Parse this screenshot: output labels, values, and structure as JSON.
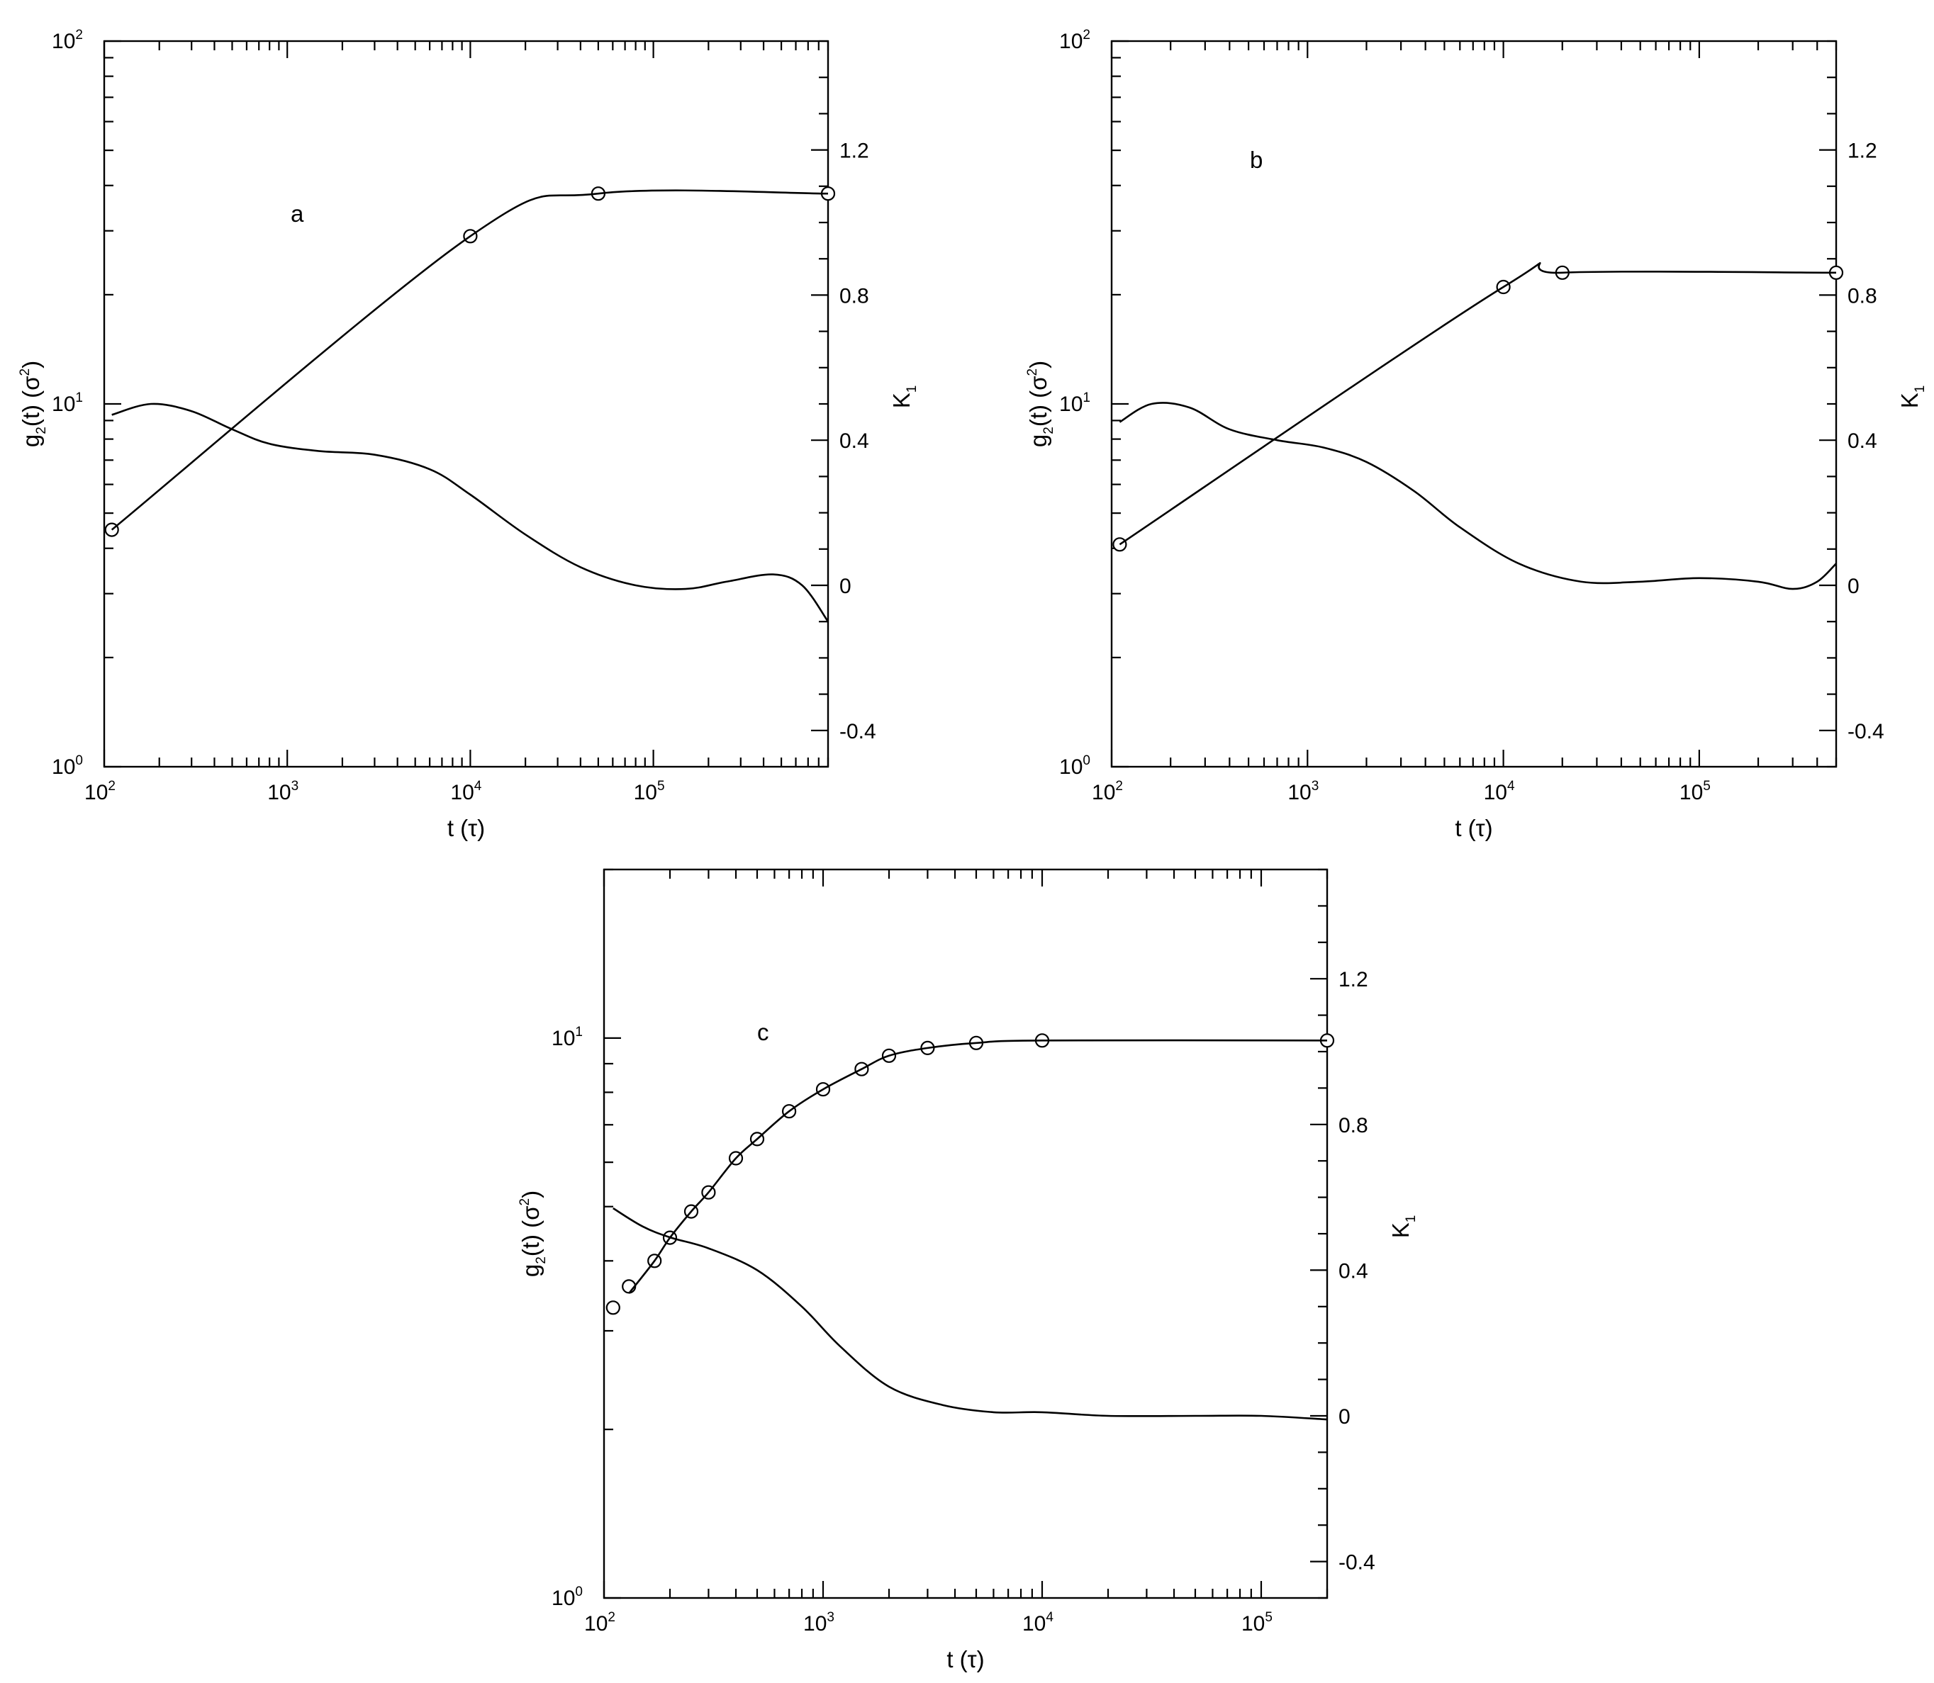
{
  "chart_data": [
    {
      "type": "line",
      "panel_label": "a",
      "xlabel": "t (τ)",
      "ylabel": "g2(t) (σ²)",
      "y2label": "K1",
      "xscale": "log",
      "yscale": "log",
      "xlim": [
        100,
        900000
      ],
      "ylim": [
        1,
        100
      ],
      "y2lim": [
        -0.5,
        1.5
      ],
      "xticks": [
        100,
        1000,
        10000,
        100000
      ],
      "xtick_labels": [
        {
          "base": "10",
          "exp": "2"
        },
        {
          "base": "10",
          "exp": "3"
        },
        {
          "base": "10",
          "exp": "4"
        },
        {
          "base": "10",
          "exp": "5"
        }
      ],
      "yticks": [
        1,
        10,
        100
      ],
      "ytick_labels": [
        {
          "base": "10",
          "exp": "0"
        },
        {
          "base": "10",
          "exp": "1"
        },
        {
          "base": "10",
          "exp": "2"
        }
      ],
      "y2ticks": [
        -0.4,
        0,
        0.4,
        0.8,
        1.2
      ],
      "y2tick_labels": [
        "-0.4",
        "0",
        "0.4",
        "0.8",
        "1.2"
      ],
      "series": [
        {
          "marker": "circle",
          "axis": "left",
          "x": [
            110,
            10000,
            50000,
            900000
          ],
          "y": [
            4.5,
            29,
            38,
            38
          ]
        },
        {
          "marker": "none",
          "axis": "left",
          "x": [
            110,
            10000,
            50000,
            900000
          ],
          "y": [
            4.5,
            29,
            38,
            38
          ]
        },
        {
          "marker": "none",
          "axis": "right",
          "x": [
            110,
            180,
            300,
            500,
            800,
            1500,
            3000,
            6000,
            10000,
            20000,
            40000,
            80000,
            150000,
            250000,
            450000,
            650000,
            900000
          ],
          "y": [
            0.47,
            0.5,
            0.48,
            0.43,
            0.39,
            0.37,
            0.36,
            0.32,
            0.25,
            0.14,
            0.05,
            0.0,
            -0.01,
            0.01,
            0.03,
            0.0,
            -0.1
          ]
        }
      ]
    },
    {
      "type": "line",
      "panel_label": "b",
      "xlabel": "t (τ)",
      "ylabel": "g2(t) (σ²)",
      "y2label": "K1",
      "xscale": "log",
      "yscale": "log",
      "xlim": [
        100,
        500000
      ],
      "ylim": [
        1,
        100
      ],
      "y2lim": [
        -0.5,
        1.5
      ],
      "xticks": [
        100,
        1000,
        10000,
        100000
      ],
      "xtick_labels": [
        {
          "base": "10",
          "exp": "2"
        },
        {
          "base": "10",
          "exp": "3"
        },
        {
          "base": "10",
          "exp": "4"
        },
        {
          "base": "10",
          "exp": "5"
        }
      ],
      "yticks": [
        1,
        10,
        100
      ],
      "ytick_labels": [
        {
          "base": "10",
          "exp": "0"
        },
        {
          "base": "10",
          "exp": "1"
        },
        {
          "base": "10",
          "exp": "2"
        }
      ],
      "y2ticks": [
        -0.4,
        0,
        0.4,
        0.8,
        1.2
      ],
      "y2tick_labels": [
        "-0.4",
        "0",
        "0.4",
        "0.8",
        "1.2"
      ],
      "series": [
        {
          "marker": "circle",
          "axis": "left",
          "x": [
            110,
            10000,
            20000,
            500000
          ],
          "y": [
            4.1,
            21,
            23,
            23
          ]
        },
        {
          "marker": "none",
          "axis": "left",
          "x": [
            110,
            10000,
            20000,
            500000
          ],
          "y": [
            4.1,
            21,
            23,
            23
          ]
        },
        {
          "marker": "none",
          "axis": "right",
          "x": [
            110,
            160,
            250,
            400,
            700,
            1200,
            2000,
            3500,
            6000,
            12000,
            25000,
            50000,
            100000,
            200000,
            300000,
            400000,
            500000
          ],
          "y": [
            0.45,
            0.5,
            0.49,
            0.43,
            0.4,
            0.38,
            0.34,
            0.26,
            0.16,
            0.06,
            0.01,
            0.01,
            0.02,
            0.01,
            -0.01,
            0.01,
            0.06
          ]
        }
      ]
    },
    {
      "type": "line",
      "panel_label": "c",
      "xlabel": "t (τ)",
      "ylabel": "g2(t) (σ²)",
      "y2label": "K1",
      "xscale": "log",
      "yscale": "log",
      "xlim": [
        100,
        200000
      ],
      "ylim": [
        1,
        20
      ],
      "y2lim": [
        -0.5,
        1.5
      ],
      "xticks": [
        100,
        1000,
        10000,
        100000
      ],
      "xtick_labels": [
        {
          "base": "10",
          "exp": "2"
        },
        {
          "base": "10",
          "exp": "3"
        },
        {
          "base": "10",
          "exp": "4"
        },
        {
          "base": "10",
          "exp": "5"
        }
      ],
      "yticks": [
        1,
        10
      ],
      "ytick_labels": [
        {
          "base": "10",
          "exp": "0"
        },
        {
          "base": "10",
          "exp": "1"
        }
      ],
      "y2ticks": [
        -0.4,
        0,
        0.4,
        0.8,
        1.2
      ],
      "y2tick_labels": [
        "-0.4",
        "0",
        "0.4",
        "0.8",
        "1.2"
      ],
      "series": [
        {
          "marker": "circle",
          "axis": "left",
          "x": [
            110,
            130,
            170,
            200,
            250,
            300,
            400,
            500,
            700,
            1000,
            1500,
            2000,
            3000,
            5000,
            10000,
            200000
          ],
          "y": [
            3.3,
            3.6,
            4.0,
            4.4,
            4.9,
            5.3,
            6.1,
            6.6,
            7.4,
            8.1,
            8.8,
            9.3,
            9.6,
            9.8,
            9.9,
            9.9
          ]
        },
        {
          "marker": "none",
          "axis": "left",
          "x": [
            130,
            170,
            200,
            250,
            300,
            400,
            500,
            700,
            1000,
            1500,
            2000,
            3000,
            5000,
            10000,
            200000
          ],
          "y": [
            3.5,
            4.0,
            4.4,
            4.9,
            5.3,
            6.1,
            6.6,
            7.4,
            8.1,
            8.8,
            9.3,
            9.6,
            9.8,
            9.9,
            9.9
          ]
        },
        {
          "marker": "none",
          "axis": "right",
          "x": [
            110,
            150,
            200,
            300,
            500,
            800,
            1200,
            2000,
            3500,
            6000,
            10000,
            20000,
            50000,
            100000,
            200000
          ],
          "y": [
            0.57,
            0.52,
            0.49,
            0.46,
            0.4,
            0.3,
            0.19,
            0.08,
            0.03,
            0.01,
            0.01,
            0.0,
            0.0,
            0.0,
            -0.01
          ]
        }
      ]
    }
  ]
}
